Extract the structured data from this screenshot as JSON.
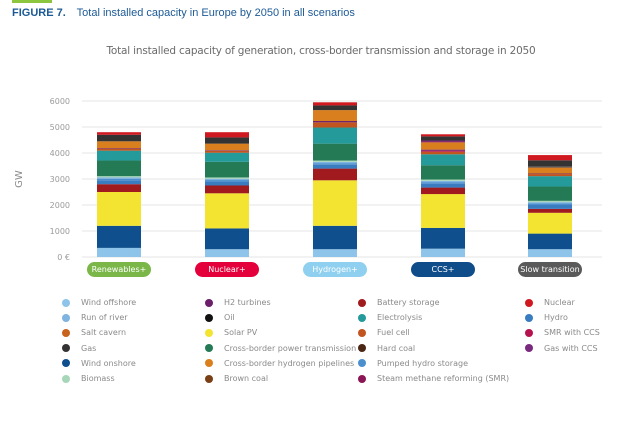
{
  "figure": {
    "number_label": "FIGURE 7.",
    "title": "Total installed capacity in Europe by 2050 in all scenarios"
  },
  "chart_data": {
    "type": "bar",
    "stacked": true,
    "title": "Total installed capacity of generation, cross-border transmission and storage in 2050",
    "xlabel": "",
    "ylabel": "GW",
    "ylim": [
      0,
      6000
    ],
    "yticks": [
      0,
      1000,
      2000,
      3000,
      4000,
      5000,
      6000
    ],
    "ytick_labels": [
      "0 €",
      "1000",
      "2000",
      "3000",
      "4000",
      "5000",
      "6000"
    ],
    "grid": true,
    "legend_position": "bottom",
    "categories": [
      "Renewables+",
      "Nuclear+",
      "Hydrogen+",
      "CCS+",
      "Slow transition"
    ],
    "category_colors": [
      "#7ab648",
      "#e4003a",
      "#8fd0f0",
      "#0f4c8a",
      "#5a5a5a"
    ],
    "series": [
      {
        "name": "Wind offshore",
        "color": "#8ec4ea",
        "values": [
          350,
          300,
          300,
          320,
          300
        ]
      },
      {
        "name": "Wind onshore",
        "color": "#104f8d",
        "values": [
          850,
          800,
          900,
          800,
          600
        ]
      },
      {
        "name": "Solar PV",
        "color": "#f2e431",
        "values": [
          1300,
          1350,
          1750,
          1300,
          800
        ]
      },
      {
        "name": "Battery storage",
        "color": "#a01a1e",
        "values": [
          300,
          300,
          450,
          250,
          150
        ]
      },
      {
        "name": "Hydro",
        "color": "#3a7cc0",
        "values": [
          150,
          150,
          150,
          150,
          150
        ]
      },
      {
        "name": "Pumped hydro storage",
        "color": "#4c8fcf",
        "values": [
          60,
          60,
          60,
          60,
          60
        ]
      },
      {
        "name": "Run of river",
        "color": "#7fb3e0",
        "values": [
          50,
          50,
          50,
          50,
          50
        ]
      },
      {
        "name": "Biomass",
        "color": "#a7d6b8",
        "values": [
          50,
          50,
          50,
          50,
          50
        ]
      },
      {
        "name": "Cross-border power transmission",
        "color": "#237a54",
        "values": [
          600,
          600,
          650,
          550,
          550
        ]
      },
      {
        "name": "Electrolysis",
        "color": "#249a9a",
        "values": [
          380,
          350,
          620,
          420,
          400
        ]
      },
      {
        "name": "Fuel cell",
        "color": "#c2541f",
        "values": [
          80,
          80,
          200,
          100,
          80
        ]
      },
      {
        "name": "SMR with CCS",
        "color": "#b5134f",
        "values": [
          0,
          0,
          0,
          40,
          0
        ]
      },
      {
        "name": "H2 turbines",
        "color": "#6b1f6b",
        "values": [
          20,
          20,
          50,
          40,
          20
        ]
      },
      {
        "name": "Cross-border hydrogen pipelines",
        "color": "#d97f1e",
        "values": [
          260,
          250,
          420,
          280,
          220
        ]
      },
      {
        "name": "Steam methane reforming (SMR)",
        "color": "#8a1656",
        "values": [
          0,
          0,
          0,
          30,
          0
        ]
      },
      {
        "name": "Gas with CCS",
        "color": "#7a2a7e",
        "values": [
          0,
          0,
          0,
          40,
          0
        ]
      },
      {
        "name": "Brown coal",
        "color": "#7a3f14",
        "values": [
          0,
          0,
          0,
          0,
          20
        ]
      },
      {
        "name": "Hard coal",
        "color": "#4a2614",
        "values": [
          0,
          0,
          0,
          0,
          20
        ]
      },
      {
        "name": "Oil",
        "color": "#111111",
        "values": [
          0,
          0,
          0,
          0,
          20
        ]
      },
      {
        "name": "Gas",
        "color": "#333333",
        "values": [
          250,
          240,
          180,
          160,
          230
        ]
      },
      {
        "name": "Nuclear",
        "color": "#d01820",
        "values": [
          100,
          200,
          120,
          80,
          200
        ]
      }
    ]
  },
  "legend": {
    "columns": [
      [
        {
          "label": "Wind offshore",
          "color": "#8ec4ea"
        },
        {
          "label": "Run of river",
          "color": "#7fb3e0"
        },
        {
          "label": "Salt cavern",
          "color": "#c9621c"
        },
        {
          "label": "Gas",
          "color": "#333333"
        },
        {
          "label": "Wind onshore",
          "color": "#104f8d"
        },
        {
          "label": "Biomass",
          "color": "#a7d6b8"
        }
      ],
      [
        {
          "label": "H2 turbines",
          "color": "#6b1f6b"
        },
        {
          "label": "Oil",
          "color": "#111111"
        },
        {
          "label": "Solar PV",
          "color": "#f2e431"
        },
        {
          "label": "Cross-border power transmission",
          "color": "#237a54"
        },
        {
          "label": "Cross-border hydrogen pipelines",
          "color": "#d97f1e"
        },
        {
          "label": "Brown coal",
          "color": "#7a3f14"
        }
      ],
      [
        {
          "label": "Battery storage",
          "color": "#a01a1e"
        },
        {
          "label": "Electrolysis",
          "color": "#249a9a"
        },
        {
          "label": "Fuel cell",
          "color": "#c2541f"
        },
        {
          "label": "Hard coal",
          "color": "#4a2614"
        },
        {
          "label": "Pumped hydro storage",
          "color": "#4c8fcf"
        },
        {
          "label": "Steam methane reforming (SMR)",
          "color": "#8a1656"
        }
      ],
      [
        {
          "label": "Nuclear",
          "color": "#d01820"
        },
        {
          "label": "Hydro",
          "color": "#3a7cc0"
        },
        {
          "label": "SMR with CCS",
          "color": "#b5134f"
        },
        {
          "label": "Gas with CCS",
          "color": "#7a2a7e"
        }
      ]
    ]
  }
}
